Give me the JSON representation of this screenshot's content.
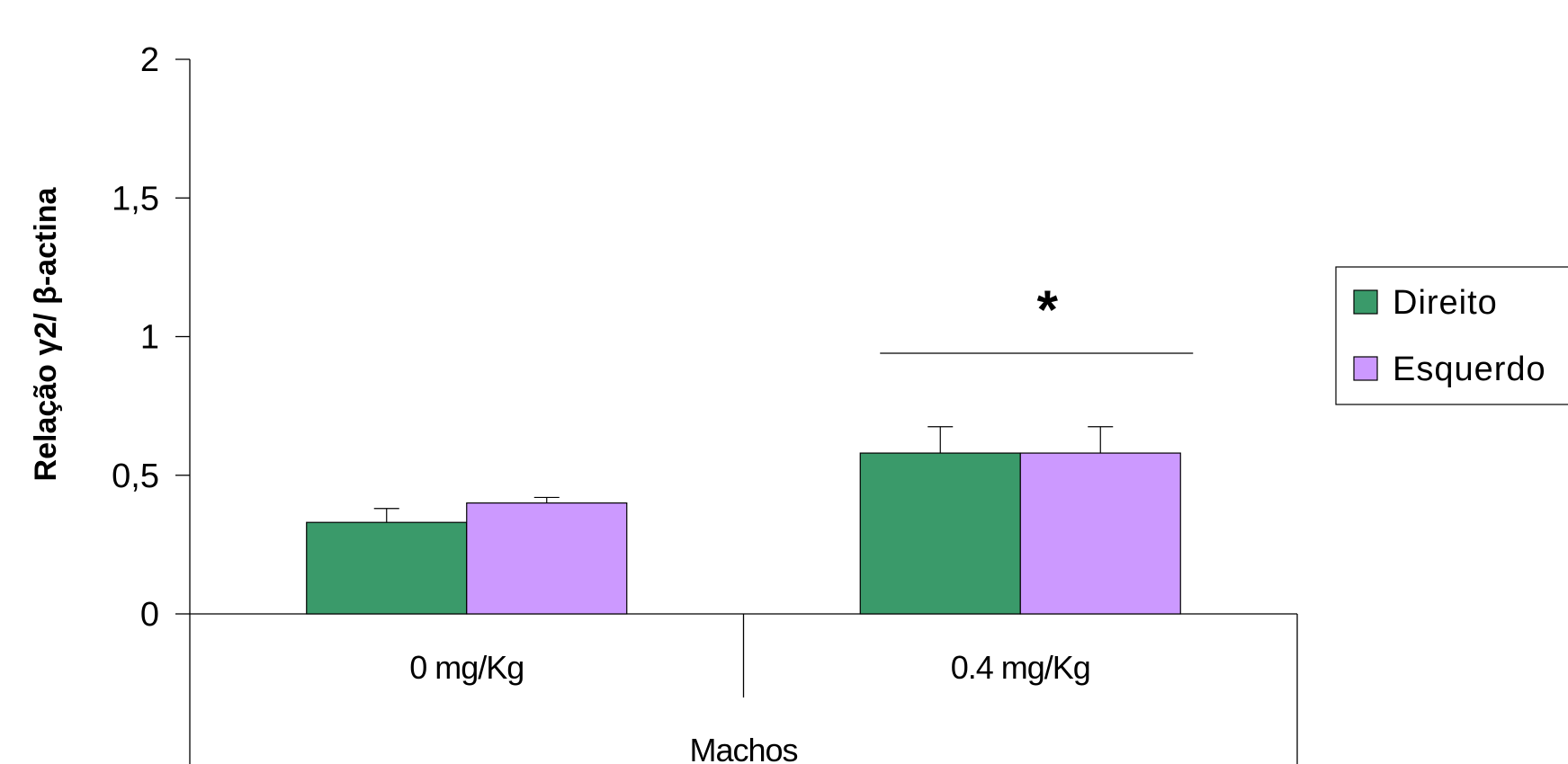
{
  "chart_data": {
    "type": "bar",
    "ylabel": "Relação  γ2/ β-actina",
    "ylim": [
      0,
      2
    ],
    "yticks": [
      {
        "value": 0,
        "label": "0"
      },
      {
        "value": 0.5,
        "label": "0,5"
      },
      {
        "value": 1,
        "label": "1"
      },
      {
        "value": 1.5,
        "label": "1,5"
      },
      {
        "value": 2,
        "label": "2"
      }
    ],
    "categories": [
      "0 mg/Kg",
      "0.4 mg/Kg"
    ],
    "group_label": "Machos",
    "series": [
      {
        "name": "Direito",
        "color": "#3a9a6a",
        "values": [
          0.33,
          0.58
        ],
        "errors": [
          0.05,
          0.095
        ]
      },
      {
        "name": "Esquerdo",
        "color": "#cc99ff",
        "values": [
          0.4,
          0.58
        ],
        "errors": [
          0.02,
          0.095
        ]
      }
    ],
    "annotations": [
      {
        "text": "*",
        "category": "0.4 mg/Kg",
        "bracket_y": 0.94
      }
    ],
    "legend_position": "right",
    "grid": false
  }
}
